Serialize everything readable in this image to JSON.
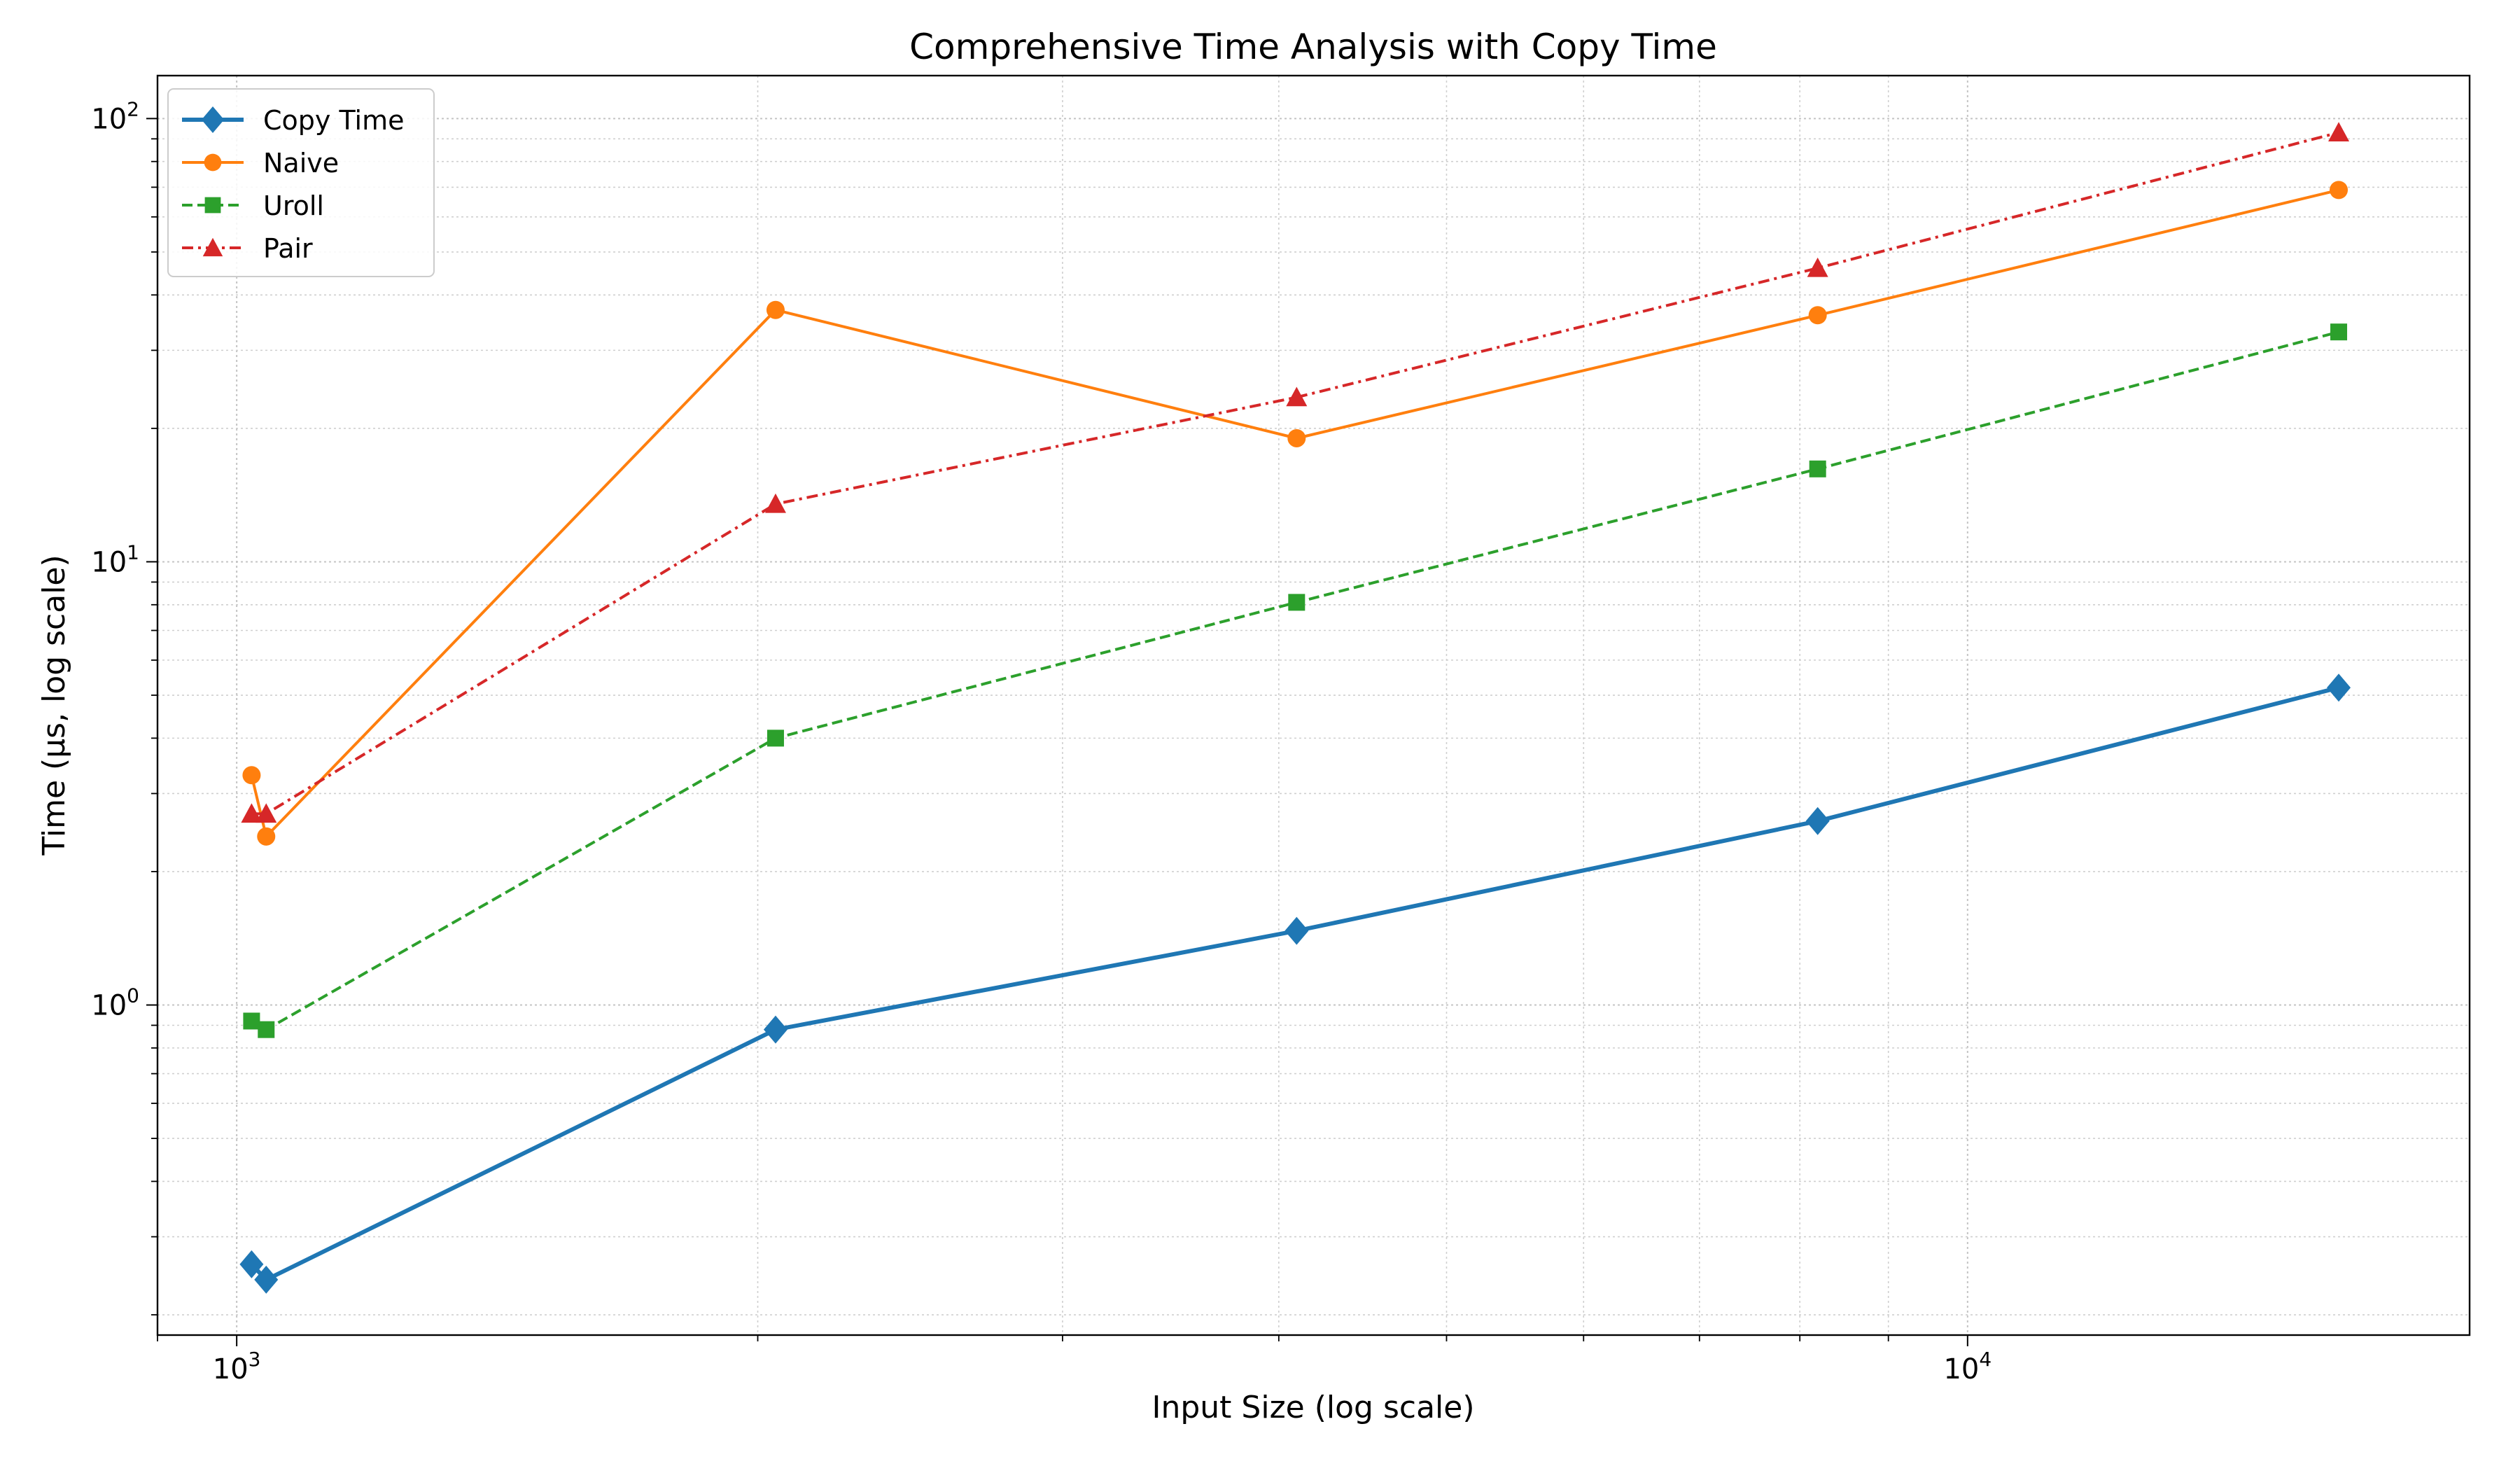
{
  "chart_data": {
    "type": "line",
    "title": "Comprehensive Time Analysis with Copy Time",
    "xlabel": "Input Size (log scale)",
    "ylabel": "Time (µs, log scale)",
    "x_scale": "log",
    "y_scale": "log",
    "xlim": [
      900,
      19500
    ],
    "ylim": [
      0.18,
      125
    ],
    "grid": true,
    "legend_position": "top-left",
    "x_tick_labels": [
      {
        "value": 1000,
        "base": "10",
        "exp": "3"
      },
      {
        "value": 10000,
        "base": "10",
        "exp": "4"
      }
    ],
    "y_tick_labels": [
      {
        "value": 1,
        "base": "10",
        "exp": "0"
      },
      {
        "value": 10,
        "base": "10",
        "exp": "1"
      },
      {
        "value": 100,
        "base": "10",
        "exp": "2"
      }
    ],
    "series": [
      {
        "name": "Copy Time",
        "color": "#1f77b4",
        "marker": "diamond",
        "line_style": "solid",
        "line_width": "thick",
        "points": [
          {
            "x": 1020,
            "y": 0.26
          },
          {
            "x": 1040,
            "y": 0.24
          },
          {
            "x": 2048,
            "y": 0.88
          },
          {
            "x": 4096,
            "y": 1.47
          },
          {
            "x": 8192,
            "y": 2.6
          },
          {
            "x": 16384,
            "y": 5.2
          }
        ]
      },
      {
        "name": "Naive",
        "color": "#ff7f0e",
        "marker": "circle",
        "line_style": "solid",
        "line_width": "normal",
        "points": [
          {
            "x": 1020,
            "y": 3.3
          },
          {
            "x": 1040,
            "y": 2.4
          },
          {
            "x": 2048,
            "y": 37
          },
          {
            "x": 4096,
            "y": 19
          },
          {
            "x": 8192,
            "y": 36
          },
          {
            "x": 16384,
            "y": 69
          }
        ]
      },
      {
        "name": "Uroll",
        "color": "#2ca02c",
        "marker": "square",
        "line_style": "dashed",
        "line_width": "normal",
        "points": [
          {
            "x": 1020,
            "y": 0.92
          },
          {
            "x": 1040,
            "y": 0.88
          },
          {
            "x": 2048,
            "y": 4.0
          },
          {
            "x": 4096,
            "y": 8.1
          },
          {
            "x": 8192,
            "y": 16.2
          },
          {
            "x": 16384,
            "y": 33
          }
        ]
      },
      {
        "name": "Pair",
        "color": "#d62728",
        "marker": "triangle",
        "line_style": "dashdot",
        "line_width": "normal",
        "points": [
          {
            "x": 1020,
            "y": 2.7
          },
          {
            "x": 1040,
            "y": 2.7
          },
          {
            "x": 2048,
            "y": 13.5
          },
          {
            "x": 4096,
            "y": 23.5
          },
          {
            "x": 8192,
            "y": 46
          },
          {
            "x": 16384,
            "y": 93
          }
        ]
      }
    ]
  }
}
